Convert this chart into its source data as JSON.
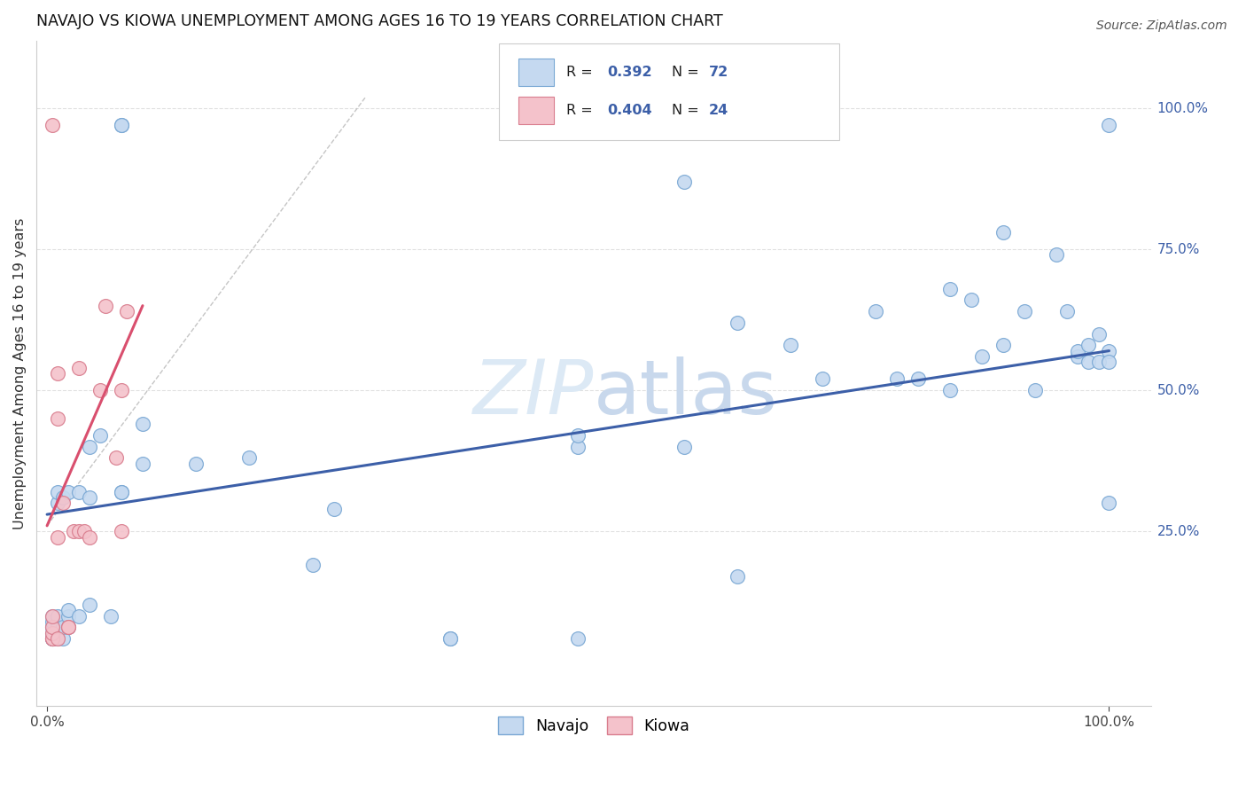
{
  "title": "NAVAJO VS KIOWA UNEMPLOYMENT AMONG AGES 16 TO 19 YEARS CORRELATION CHART",
  "source": "Source: ZipAtlas.com",
  "ylabel": "Unemployment Among Ages 16 to 19 years",
  "legend_label1": "Navajo",
  "legend_label2": "Kiowa",
  "R_navajo": "0.392",
  "N_navajo": "72",
  "R_kiowa": "0.404",
  "N_kiowa": "24",
  "navajo_color": "#c5d9f0",
  "kiowa_color": "#f4c2cb",
  "navajo_edge": "#7aa8d4",
  "kiowa_edge": "#d97d8e",
  "trend_navajo_color": "#3c5fa8",
  "trend_kiowa_color": "#d94f6e",
  "watermark_color": "#dce9f5",
  "background_color": "#ffffff",
  "grid_color": "#e0e0e0",
  "navajo_x": [
    0.005,
    0.005,
    0.005,
    0.005,
    0.005,
    0.005,
    0.005,
    0.005,
    0.01,
    0.01,
    0.01,
    0.01,
    0.01,
    0.01,
    0.015,
    0.015,
    0.015,
    0.02,
    0.02,
    0.02,
    0.02,
    0.03,
    0.03,
    0.04,
    0.04,
    0.04,
    0.05,
    0.06,
    0.07,
    0.07,
    0.07,
    0.07,
    0.09,
    0.09,
    0.14,
    0.19,
    0.25,
    0.27,
    0.38,
    0.38,
    0.5,
    0.5,
    0.5,
    0.6,
    0.6,
    0.65,
    0.65,
    0.7,
    0.73,
    0.78,
    0.8,
    0.82,
    0.85,
    0.85,
    0.87,
    0.88,
    0.9,
    0.9,
    0.92,
    0.93,
    0.95,
    0.96,
    0.97,
    0.97,
    0.98,
    0.98,
    0.99,
    0.99,
    1.0,
    1.0,
    1.0,
    1.0
  ],
  "navajo_y": [
    0.06,
    0.06,
    0.06,
    0.07,
    0.08,
    0.08,
    0.09,
    0.1,
    0.06,
    0.07,
    0.08,
    0.1,
    0.3,
    0.32,
    0.06,
    0.08,
    0.31,
    0.08,
    0.1,
    0.11,
    0.32,
    0.1,
    0.32,
    0.12,
    0.31,
    0.4,
    0.42,
    0.1,
    0.32,
    0.32,
    0.97,
    0.97,
    0.37,
    0.44,
    0.37,
    0.38,
    0.19,
    0.29,
    0.06,
    0.06,
    0.06,
    0.4,
    0.42,
    0.4,
    0.87,
    0.17,
    0.62,
    0.58,
    0.52,
    0.64,
    0.52,
    0.52,
    0.5,
    0.68,
    0.66,
    0.56,
    0.58,
    0.78,
    0.64,
    0.5,
    0.74,
    0.64,
    0.56,
    0.57,
    0.55,
    0.58,
    0.55,
    0.6,
    0.57,
    0.55,
    0.3,
    0.97
  ],
  "kiowa_x": [
    0.005,
    0.005,
    0.005,
    0.005,
    0.005,
    0.005,
    0.01,
    0.01,
    0.01,
    0.01,
    0.015,
    0.02,
    0.02,
    0.025,
    0.03,
    0.03,
    0.035,
    0.04,
    0.05,
    0.055,
    0.065,
    0.07,
    0.07,
    0.075
  ],
  "kiowa_y": [
    0.06,
    0.06,
    0.07,
    0.08,
    0.1,
    0.97,
    0.06,
    0.24,
    0.45,
    0.53,
    0.3,
    0.08,
    0.08,
    0.25,
    0.25,
    0.54,
    0.25,
    0.24,
    0.5,
    0.65,
    0.38,
    0.25,
    0.5,
    0.64
  ],
  "navajo_trend_x": [
    0.0,
    1.0
  ],
  "navajo_trend_y": [
    0.28,
    0.57
  ],
  "kiowa_trend_x": [
    0.0,
    0.09
  ],
  "kiowa_trend_y": [
    0.26,
    0.65
  ],
  "dash_line_x": [
    0.0,
    0.3
  ],
  "dash_line_y": [
    0.26,
    1.02
  ],
  "xlim": [
    -0.01,
    1.04
  ],
  "ylim": [
    -0.06,
    1.12
  ]
}
